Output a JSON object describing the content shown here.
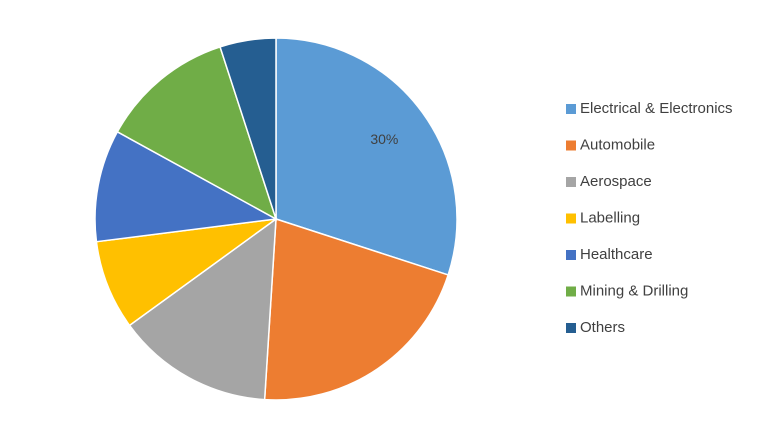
{
  "chart_data": {
    "type": "pie",
    "categories": [
      "Electrical & Electronics",
      "Automobile",
      "Aerospace",
      "Labelling",
      "Healthcare",
      "Mining & Drilling",
      "Others"
    ],
    "values": [
      30,
      21,
      14,
      8,
      10,
      12,
      5
    ],
    "value_labels": [
      "30%",
      null,
      null,
      null,
      null,
      null,
      null
    ],
    "colors": [
      "#5b9bd5",
      "#ed7d31",
      "#a5a5a5",
      "#ffc000",
      "#4472c4",
      "#70ad47",
      "#255e91"
    ],
    "legend": "right"
  }
}
